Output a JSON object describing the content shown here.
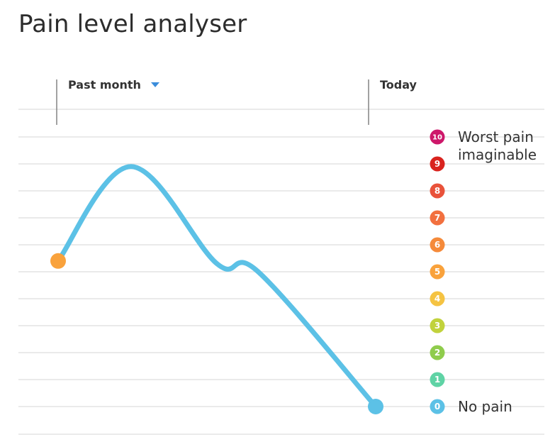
{
  "title": "Pain level analyser",
  "range_select": {
    "label": "Past month"
  },
  "today_label": "Today",
  "chart_data": {
    "type": "line",
    "title": "Pain level analyser",
    "x_start_label": "Past month",
    "x_end_label": "Today",
    "ylim": [
      0,
      10
    ],
    "y_ticks": [
      "0",
      "1",
      "2",
      "3",
      "4",
      "5",
      "6",
      "7",
      "8",
      "9",
      "10"
    ],
    "y_tick_colors": [
      "#5cc1e6",
      "#5fd3a5",
      "#8fcc4c",
      "#c1d23c",
      "#f5c342",
      "#f9a23c",
      "#f58a3a",
      "#f2703f",
      "#e9523a",
      "#d9231e",
      "#cd176a"
    ],
    "annotations": [
      {
        "level": 10,
        "lines": [
          "Worst pain",
          "imaginable"
        ]
      },
      {
        "level": 0,
        "lines": [
          "No pain"
        ]
      }
    ],
    "series": [
      {
        "x": [
          0,
          0.23,
          0.5,
          0.63,
          1
        ],
        "y": [
          5.4,
          8.9,
          5.3,
          5.0,
          0
        ]
      }
    ],
    "grid": true
  }
}
